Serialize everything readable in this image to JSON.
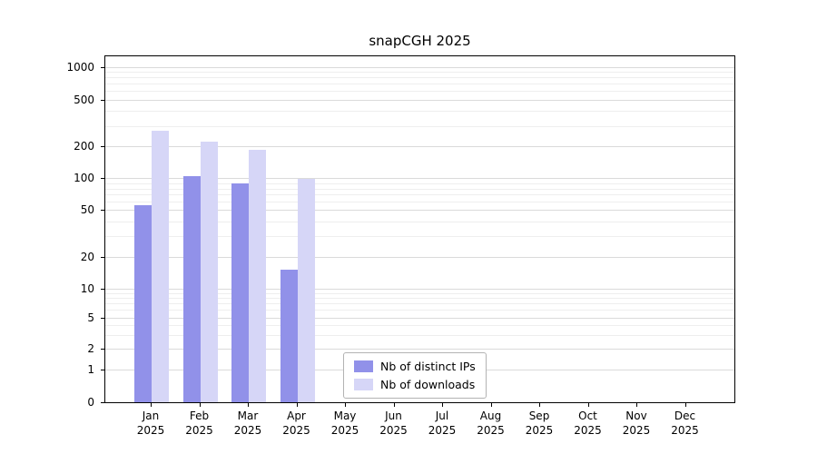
{
  "title": "snapCGH 2025",
  "chart_data": {
    "type": "bar",
    "title": "snapCGH 2025",
    "year_label": "2025",
    "categories": [
      "Jan",
      "Feb",
      "Mar",
      "Apr",
      "May",
      "Jun",
      "Jul",
      "Aug",
      "Sep",
      "Oct",
      "Nov",
      "Dec"
    ],
    "series": [
      {
        "name": "Nb of distinct IPs",
        "color": "#9191e9",
        "values": [
          55,
          105,
          90,
          15,
          null,
          null,
          null,
          null,
          null,
          null,
          null,
          null
        ]
      },
      {
        "name": "Nb of downloads",
        "color": "#d6d6f7",
        "values": [
          270,
          220,
          185,
          100,
          null,
          null,
          null,
          null,
          null,
          null,
          null,
          null
        ]
      }
    ],
    "y_ticks": [
      0,
      1,
      2,
      5,
      10,
      20,
      50,
      100,
      200,
      500,
      1000
    ],
    "y_scale": "log",
    "ylim": [
      0,
      1200
    ],
    "grid": true,
    "legend_position": "lower-center-inside"
  }
}
